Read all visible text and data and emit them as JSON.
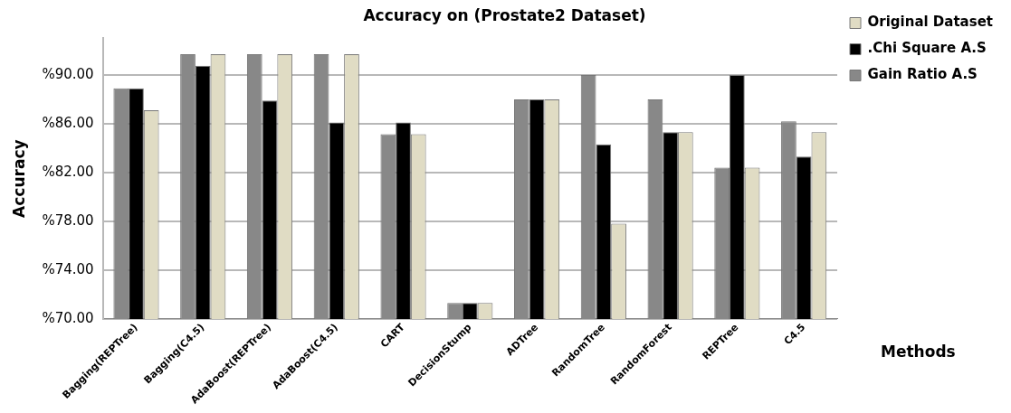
{
  "chart_data": {
    "type": "bar",
    "title": "Accuracy on (Prostate2 Dataset)",
    "xlabel": "Methods",
    "ylabel": "Accuracy",
    "categories": [
      "Bagging(REPTree)",
      "Bagging(C4.5)",
      "AdaBoost(REPTree)",
      "AdaBoost(C4.5)",
      "CART",
      "DecisionStump",
      "ADTree",
      "RandomTree",
      "RandomForest",
      "REPTree",
      "C4.5"
    ],
    "series": [
      {
        "name": "Gain Ratio A.S",
        "color": "#888888",
        "values": [
          88.9,
          91.7,
          91.7,
          91.7,
          85.15,
          71.3,
          88.0,
          90.0,
          88.0,
          82.4,
          86.2
        ]
      },
      {
        "name": ".Chi Square A.S",
        "color": "#000000",
        "values": [
          88.9,
          90.75,
          87.9,
          86.1,
          86.1,
          71.3,
          88.0,
          84.3,
          85.3,
          90.0,
          83.3
        ]
      },
      {
        "name": "Original Dataset",
        "color": "#e0dcc4",
        "values": [
          87.1,
          91.7,
          91.7,
          91.7,
          85.15,
          71.3,
          88.0,
          77.8,
          85.3,
          82.4,
          85.3
        ]
      }
    ],
    "ylim": [
      70,
      93
    ],
    "yticks": [
      {
        "value": 70,
        "label": "%70.00"
      },
      {
        "value": 74,
        "label": "%74.00"
      },
      {
        "value": 78,
        "label": "%78.00"
      },
      {
        "value": 82,
        "label": "%82.00"
      },
      {
        "value": 86,
        "label": "%86.00"
      },
      {
        "value": 90,
        "label": "%90.00"
      }
    ],
    "grid": "y",
    "legend": "right"
  }
}
